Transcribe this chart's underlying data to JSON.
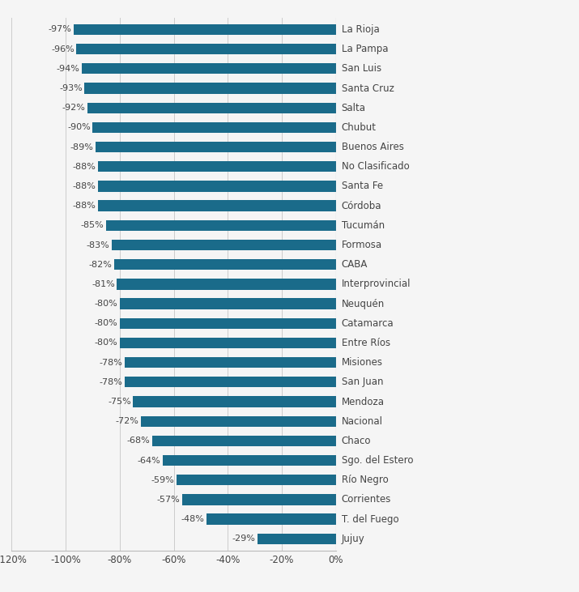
{
  "categories": [
    "La Rioja",
    "La Pampa",
    "San Luis",
    "Santa Cruz",
    "Salta",
    "Chubut",
    "Buenos Aires",
    "No Clasificado",
    "Santa Fe",
    "Córdoba",
    "Tucumán",
    "Formosa",
    "CABA",
    "Interprovincial",
    "Neuquén",
    "Catamarca",
    "Entre Ríos",
    "Misiones",
    "San Juan",
    "Mendoza",
    "Nacional",
    "Chaco",
    "Sgo. del Estero",
    "Río Negro",
    "Corrientes",
    "T. del Fuego",
    "Jujuy"
  ],
  "values": [
    -97,
    -96,
    -94,
    -93,
    -92,
    -90,
    -89,
    -88,
    -88,
    -88,
    -85,
    -83,
    -82,
    -81,
    -80,
    -80,
    -80,
    -78,
    -78,
    -75,
    -72,
    -68,
    -64,
    -59,
    -57,
    -48,
    -29
  ],
  "bar_color": "#1a6b8a",
  "label_color": "#444444",
  "background_color": "#f5f5f5",
  "xlim": [
    -120,
    0
  ],
  "xtick_values": [
    -120,
    -100,
    -80,
    -60,
    -40,
    -20,
    0
  ],
  "xtick_labels": [
    "-120%",
    "-100%",
    "-80%",
    "-60%",
    "-40%",
    "-20%",
    "0%"
  ],
  "bar_height": 0.55,
  "value_label_fontsize": 8.0,
  "category_label_fontsize": 8.5,
  "tick_label_fontsize": 8.5
}
